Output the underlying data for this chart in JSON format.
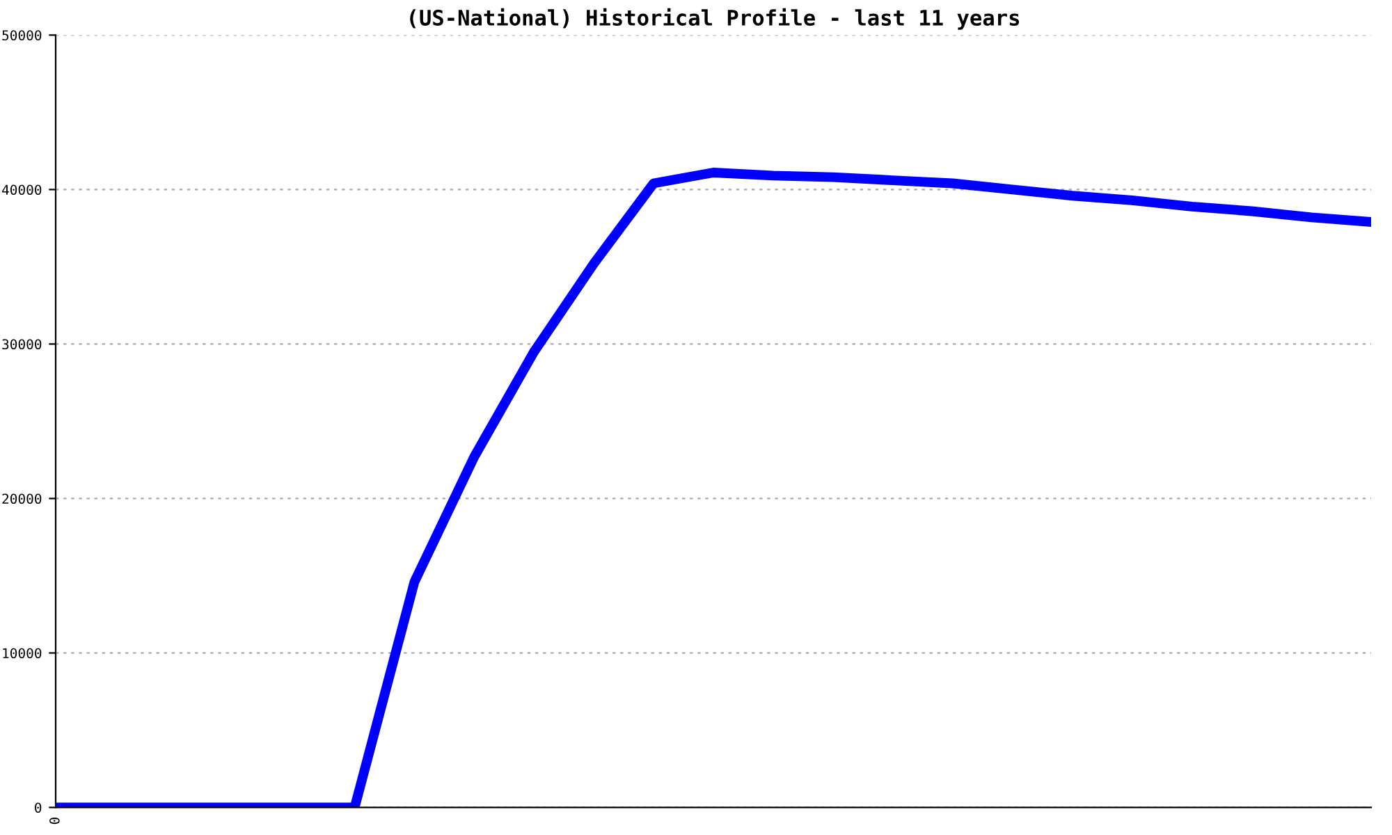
{
  "chart_data": {
    "type": "line",
    "title": "(US-National) Historical Profile - last 11 years",
    "categories": [
      null,
      null,
      null,
      null,
      null,
      null,
      null,
      null,
      null,
      null,
      null,
      null,
      null,
      null,
      null,
      null,
      null,
      null,
      null,
      null,
      null,
      null,
      null
    ],
    "series": [
      {
        "color": "#0000ff",
        "values": [
          0,
          0,
          0,
          0,
          0,
          0,
          14600,
          22700,
          29500,
          35200,
          40400,
          41100,
          40900,
          40800,
          40600,
          40400,
          40000,
          39600,
          39300,
          38900,
          38600,
          38200,
          37900
        ]
      }
    ],
    "annotations": [
      "0"
    ],
    "ylim": [
      0,
      50000
    ],
    "yticks": [
      0,
      10000,
      20000,
      30000,
      40000,
      50000
    ],
    "grid": "y",
    "legend": false,
    "marker": "none",
    "line_style": "solid"
  }
}
